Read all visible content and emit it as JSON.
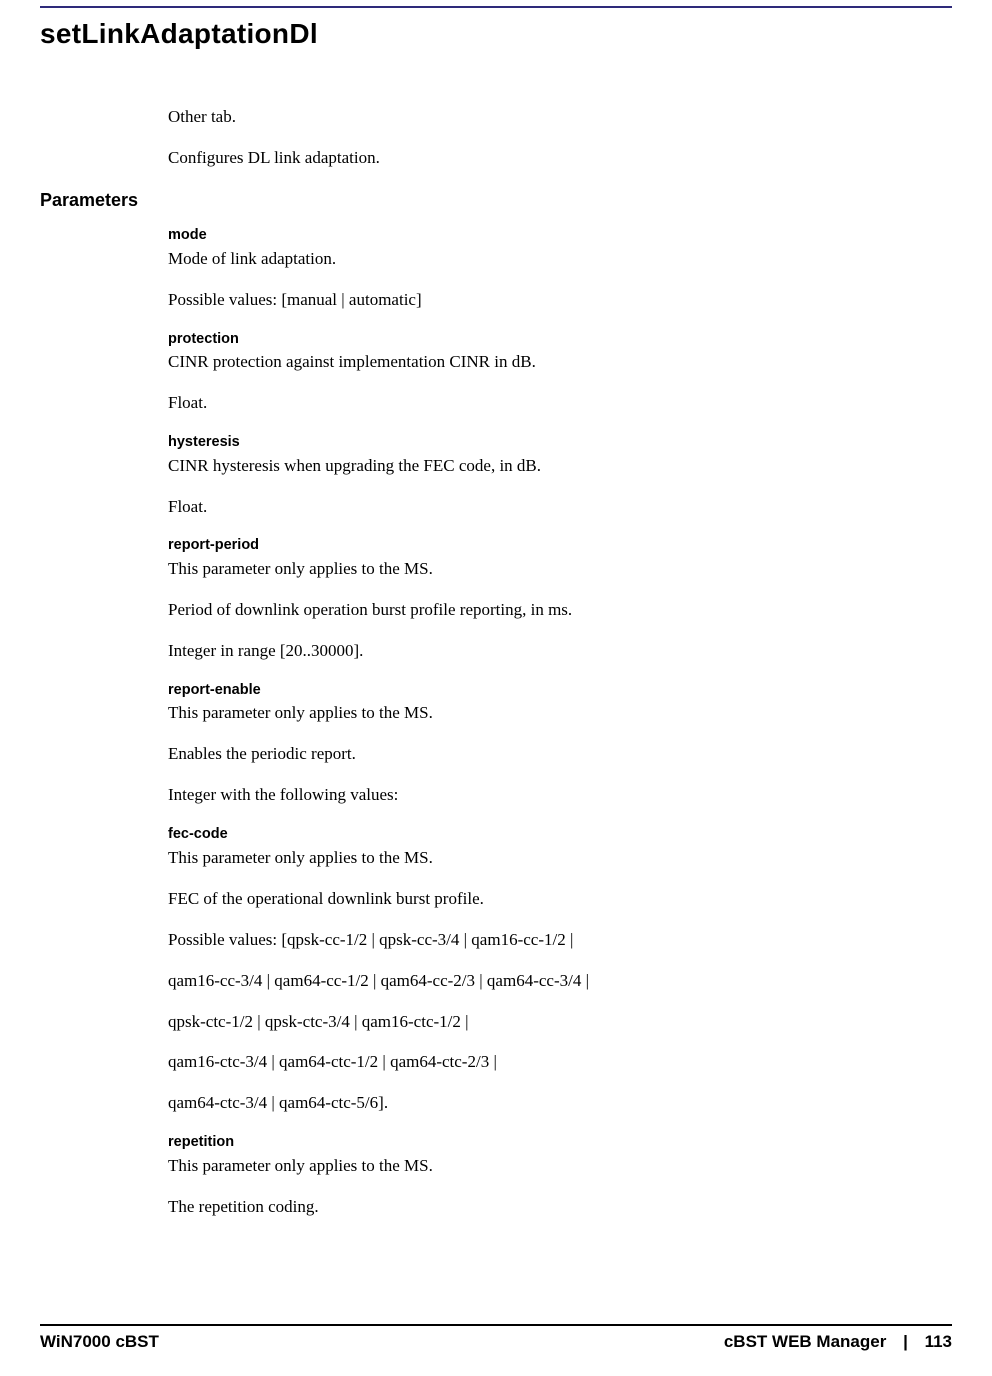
{
  "title": "setLinkAdaptationDl",
  "intro": {
    "tab_line": "Other tab.",
    "desc": "Configures DL link adaptation."
  },
  "parameters_label": "Parameters",
  "params": {
    "mode": {
      "name": "mode",
      "line1": "Mode of link adaptation.",
      "line2": "Possible values: [manual | automatic]"
    },
    "protection": {
      "name": "protection",
      "line1": "CINR protection against implementation CINR in dB.",
      "line2": "Float."
    },
    "hysteresis": {
      "name": "hysteresis",
      "line1": "CINR hysteresis when upgrading the FEC code, in dB.",
      "line2": "Float."
    },
    "report_period": {
      "name": "report-period",
      "line1": "This parameter only applies to the MS.",
      "line2": "Period of downlink operation burst profile reporting, in ms.",
      "line3": "Integer in range [20..30000]."
    },
    "report_enable": {
      "name": "report-enable",
      "line1": "This parameter only applies to the MS.",
      "line2": "Enables the periodic report.",
      "line3": "Integer with the following values:"
    },
    "fec_code": {
      "name": "fec-code",
      "line1": "This parameter only applies to the MS.",
      "line2": "FEC of the operational downlink burst profile.",
      "line3": "Possible values: [qpsk-cc-1/2 | qpsk-cc-3/4 | qam16-cc-1/2 |",
      "line4": "qam16-cc-3/4 | qam64-cc-1/2 | qam64-cc-2/3 | qam64-cc-3/4 |",
      "line5": "qpsk-ctc-1/2 | qpsk-ctc-3/4 | qam16-ctc-1/2 |",
      "line6": "qam16-ctc-3/4 | qam64-ctc-1/2 | qam64-ctc-2/3 |",
      "line7": "qam64-ctc-3/4 | qam64-ctc-5/6]."
    },
    "repetition": {
      "name": "repetition",
      "line1": "This parameter only applies to the MS.",
      "line2": "The repetition coding."
    }
  },
  "footer": {
    "left": "WiN7000 cBST",
    "right_label": "cBST WEB Manager",
    "page_number": "113"
  },
  "colors": {
    "top_rule": "#2e2a7a",
    "text": "#000000",
    "background": "#ffffff",
    "footer_rule": "#000000"
  }
}
